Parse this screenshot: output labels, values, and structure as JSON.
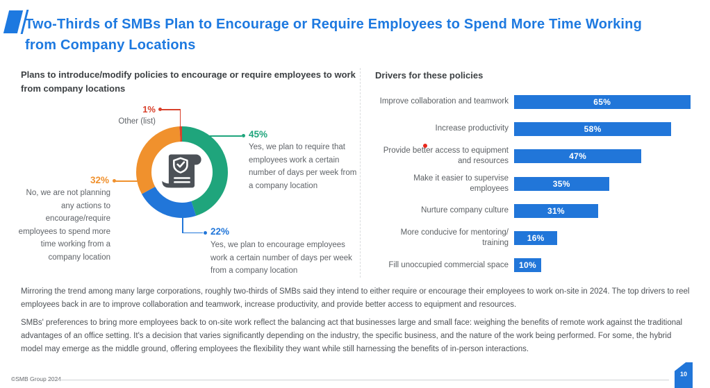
{
  "header": {
    "title": "Two-Thirds of SMBs Plan to Encourage or Require Employees to Spend More Time Working from Company Locations"
  },
  "chart_data": [
    {
      "type": "pie",
      "subtype": "donut",
      "title": "Plans to introduce/modify policies to encourage or require employees to work from company locations",
      "center_icon": "policy-scroll-shield-check",
      "slices": [
        {
          "pct_label": "45%",
          "value": 45,
          "color": "#1fa57c",
          "description": "Yes, we plan to require that employees work a certain number of days per week from a company location"
        },
        {
          "pct_label": "22%",
          "value": 22,
          "color": "#2176d9",
          "description": "Yes, we plan to encourage employees work a certain number of days per week from a company location"
        },
        {
          "pct_label": "32%",
          "value": 32,
          "color": "#f0912d",
          "description": "No, we are not planning any actions to encourage/require employees to spend more time working from a company location"
        },
        {
          "pct_label": "1%",
          "value": 1,
          "color": "#d8402b",
          "description": "Other (list)"
        }
      ]
    },
    {
      "type": "bar",
      "orientation": "horizontal",
      "title": "Drivers for these policies",
      "bar_color": "#2176d9",
      "xlim": [
        0,
        100
      ],
      "categories": [
        [
          "Improve collaboration and teamwork"
        ],
        [
          "Increase productivity"
        ],
        [
          "Provide better access to equipment",
          "and resources"
        ],
        [
          "Make it easier to supervise",
          "employees"
        ],
        [
          "Nurture company culture"
        ],
        [
          "More conducive for mentoring/",
          "training"
        ],
        [
          "Fill unoccupied commercial space"
        ]
      ],
      "values": [
        65,
        58,
        47,
        35,
        31,
        16,
        10
      ],
      "value_labels": [
        "65%",
        "58%",
        "47%",
        "35%",
        "31%",
        "16%",
        "10%"
      ]
    }
  ],
  "body_text": {
    "paragraph1": "Mirroring the trend among many large corporations, roughly two-thirds of SMBs said they intend to either require or encourage their employees to work on-site in 2024. The top drivers to reel employees back in are to improve collaboration and teamwork, increase productivity, and provide better access to equipment and resources.",
    "paragraph2": "SMBs' preferences to bring more employees back to on-site work reflect the balancing act that businesses large and small face: weighing the benefits of remote work against the traditional advantages of an office setting. It's a decision that varies significantly depending on the industry, the specific business, and the nature of the work being performed. For some, the hybrid model may emerge as the middle ground, offering employees the flexibility they want while still harnessing the benefits of in-person interactions."
  },
  "footer": {
    "copyright": "©SMB Group 2024",
    "page_number": "10"
  }
}
